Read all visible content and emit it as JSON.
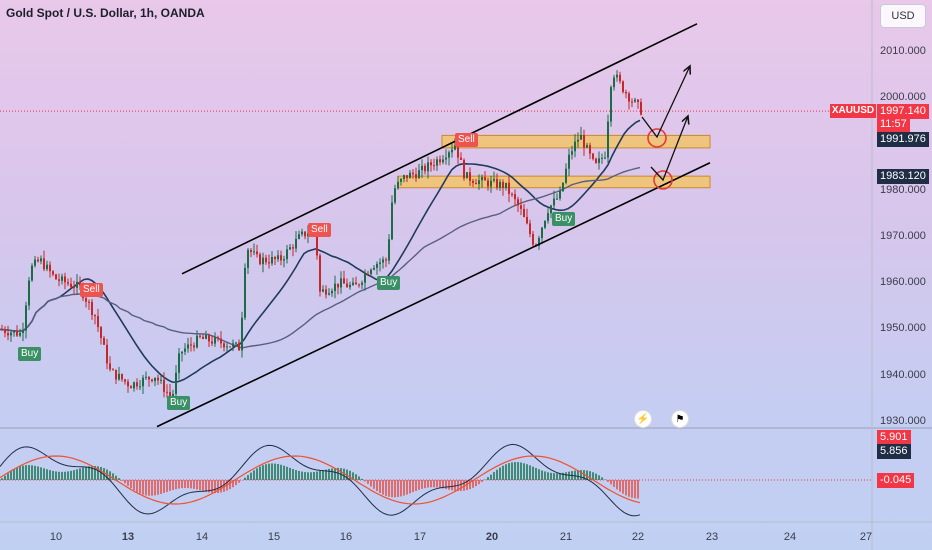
{
  "header": {
    "title": "Gold Spot / U.S. Dollar, 1h, OANDA",
    "currency": "USD"
  },
  "price_axis": {
    "ticks": [
      "2010.000",
      "2000.000",
      "1990.000",
      "1980.000",
      "1970.000",
      "1960.000",
      "1950.000",
      "1940.000",
      "1930.000"
    ]
  },
  "tags": {
    "symbol": "XAUUSD",
    "last_price": "1997.140",
    "countdown": "11:57",
    "level_upper": "1991.976",
    "level_lower": "1983.120",
    "osc_a": "5.901",
    "osc_b": "5.856",
    "osc_hist": "-0.045"
  },
  "colors": {
    "last_price": "#f23645",
    "level": "#1f2d45",
    "zone": "#f2c36b",
    "buy": "#3a8f64",
    "sell": "#ef5350"
  },
  "signals": [
    {
      "label": "Buy",
      "type": "buy"
    },
    {
      "label": "Sell",
      "type": "sell"
    },
    {
      "label": "Buy",
      "type": "buy"
    },
    {
      "label": "Sell",
      "type": "sell"
    },
    {
      "label": "Buy",
      "type": "buy"
    },
    {
      "label": "Sell",
      "type": "sell"
    },
    {
      "label": "Buy",
      "type": "buy"
    }
  ],
  "chart_data": {
    "type": "candlestick",
    "title": "Gold Spot / U.S. Dollar, 1h, OANDA",
    "x_ticks": [
      "10",
      "13",
      "14",
      "15",
      "16",
      "17",
      "20",
      "21",
      "22",
      "23",
      "24",
      "27"
    ],
    "ylim": [
      1929,
      2016
    ],
    "price_path": [
      {
        "x": 0,
        "price": 1950
      },
      {
        "x": 22,
        "price": 1949
      },
      {
        "x": 30,
        "price": 1963
      },
      {
        "x": 40,
        "price": 1965
      },
      {
        "x": 55,
        "price": 1961
      },
      {
        "x": 80,
        "price": 1959
      },
      {
        "x": 95,
        "price": 1953
      },
      {
        "x": 110,
        "price": 1941
      },
      {
        "x": 130,
        "price": 1938
      },
      {
        "x": 155,
        "price": 1940
      },
      {
        "x": 172,
        "price": 1935
      },
      {
        "x": 180,
        "price": 1945
      },
      {
        "x": 200,
        "price": 1948
      },
      {
        "x": 225,
        "price": 1947
      },
      {
        "x": 240,
        "price": 1946
      },
      {
        "x": 246,
        "price": 1968
      },
      {
        "x": 258,
        "price": 1965
      },
      {
        "x": 280,
        "price": 1965
      },
      {
        "x": 300,
        "price": 1970
      },
      {
        "x": 315,
        "price": 1972
      },
      {
        "x": 320,
        "price": 1958
      },
      {
        "x": 340,
        "price": 1960
      },
      {
        "x": 355,
        "price": 1959
      },
      {
        "x": 372,
        "price": 1964
      },
      {
        "x": 387,
        "price": 1965
      },
      {
        "x": 393,
        "price": 1980
      },
      {
        "x": 405,
        "price": 1983
      },
      {
        "x": 420,
        "price": 1984
      },
      {
        "x": 440,
        "price": 1987
      },
      {
        "x": 455,
        "price": 1990
      },
      {
        "x": 465,
        "price": 1983
      },
      {
        "x": 480,
        "price": 1982
      },
      {
        "x": 505,
        "price": 1981
      },
      {
        "x": 520,
        "price": 1976
      },
      {
        "x": 535,
        "price": 1968
      },
      {
        "x": 548,
        "price": 1976
      },
      {
        "x": 560,
        "price": 1979
      },
      {
        "x": 570,
        "price": 1988
      },
      {
        "x": 580,
        "price": 1992
      },
      {
        "x": 595,
        "price": 1985
      },
      {
        "x": 605,
        "price": 1988
      },
      {
        "x": 612,
        "price": 2006
      },
      {
        "x": 620,
        "price": 2003
      },
      {
        "x": 630,
        "price": 2000
      },
      {
        "x": 642,
        "price": 1997.1
      }
    ],
    "zones": [
      {
        "from": 1991.9,
        "to": 1989.2
      },
      {
        "from": 1983.1,
        "to": 1980.6
      }
    ],
    "channel": {
      "upper": [
        {
          "x": 182,
          "price": 1962
        },
        {
          "x": 697,
          "price": 2016
        }
      ],
      "lower": [
        {
          "x": 157,
          "price": 1929
        },
        {
          "x": 710,
          "price": 1986
        }
      ]
    },
    "oscillator": {
      "last_values": [
        5.901,
        5.856,
        -0.045
      ]
    }
  }
}
